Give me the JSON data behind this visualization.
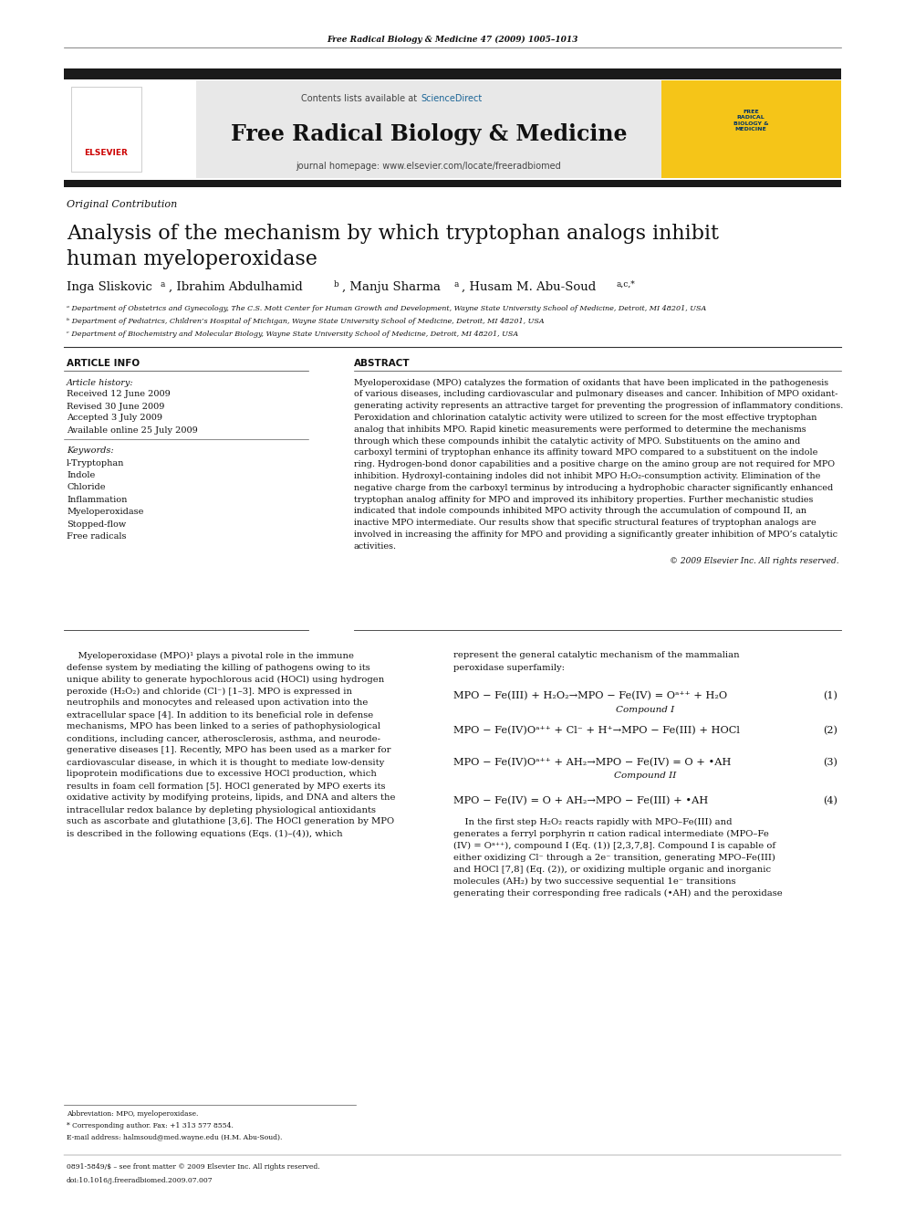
{
  "page_width": 9.92,
  "page_height": 13.23,
  "bg_color": "#ffffff",
  "header_journal": "Free Radical Biology & Medicine 47 (2009) 1005–1013",
  "journal_name": "Free Radical Biology & Medicine",
  "journal_homepage": "journal homepage: www.elsevier.com/locate/freeradbiomed",
  "contents_text": "Contents lists available at ",
  "sciencedirect_text": "ScienceDirect",
  "article_type": "Original Contribution",
  "title_line1": "Analysis of the mechanism by which tryptophan analogs inhibit",
  "title_line2": "human myeloperoxidase",
  "affil_a": "ᵃ Department of Obstetrics and Gynecology, The C.S. Mott Center for Human Growth and Development, Wayne State University School of Medicine, Detroit, MI 48201, USA",
  "affil_b": "ᵇ Department of Pediatrics, Children’s Hospital of Michigan, Wayne State University School of Medicine, Detroit, MI 48201, USA",
  "affil_c": "ᶜ Department of Biochemistry and Molecular Biology, Wayne State University School of Medicine, Detroit, MI 48201, USA",
  "article_info_header": "ARTICLE INFO",
  "abstract_header": "ABSTRACT",
  "article_history_label": "Article history:",
  "received": "Received 12 June 2009",
  "revised": "Revised 30 June 2009",
  "accepted": "Accepted 3 July 2009",
  "available_online": "Available online 25 July 2009",
  "keywords_label": "Keywords:",
  "keywords": [
    "l-Tryptophan",
    "Indole",
    "Chloride",
    "Inflammation",
    "Myeloperoxidase",
    "Stopped-flow",
    "Free radicals"
  ],
  "copyright": "© 2009 Elsevier Inc. All rights reserved.",
  "abbrev_line": "Abbreviation: MPO, myeloperoxidase.",
  "corresponding_line": "* Corresponding author. Fax: +1 313 577 8554.",
  "email_line": "E-mail address: halmsoud@med.wayne.edu (H.M. Abu-Soud).",
  "issn_line": "0891-5849/$ – see front matter © 2009 Elsevier Inc. All rights reserved.",
  "doi_line": "doi:10.1016/j.freeradbiomed.2009.07.007",
  "eq1": "MPO − Fe(III) + H₂O₂→MPO − Fe(IV) = Oᵃ⁺⁺ + H₂O",
  "eq1_label": "(1)",
  "eq1_sublabel": "Compound I",
  "eq2": "MPO − Fe(IV)Oᵃ⁺⁺ + Cl⁻ + H⁺→MPO − Fe(III) + HOCl",
  "eq2_label": "(2)",
  "eq3": "MPO − Fe(IV)Oᵃ⁺⁺ + AH₂→MPO − Fe(IV) = O + •AH",
  "eq3_label": "(3)",
  "eq3_sublabel": "Compound II",
  "eq4": "MPO − Fe(IV) = O + AH₂→MPO − Fe(III) + •AH",
  "eq4_label": "(4)",
  "header_bg": "#e8e8e8",
  "sciencedirect_blue": "#1a6496",
  "header_bar_color": "#2c2c2c",
  "journal_cover_yellow": "#f5c518",
  "elsevier_red": "#cc0000"
}
